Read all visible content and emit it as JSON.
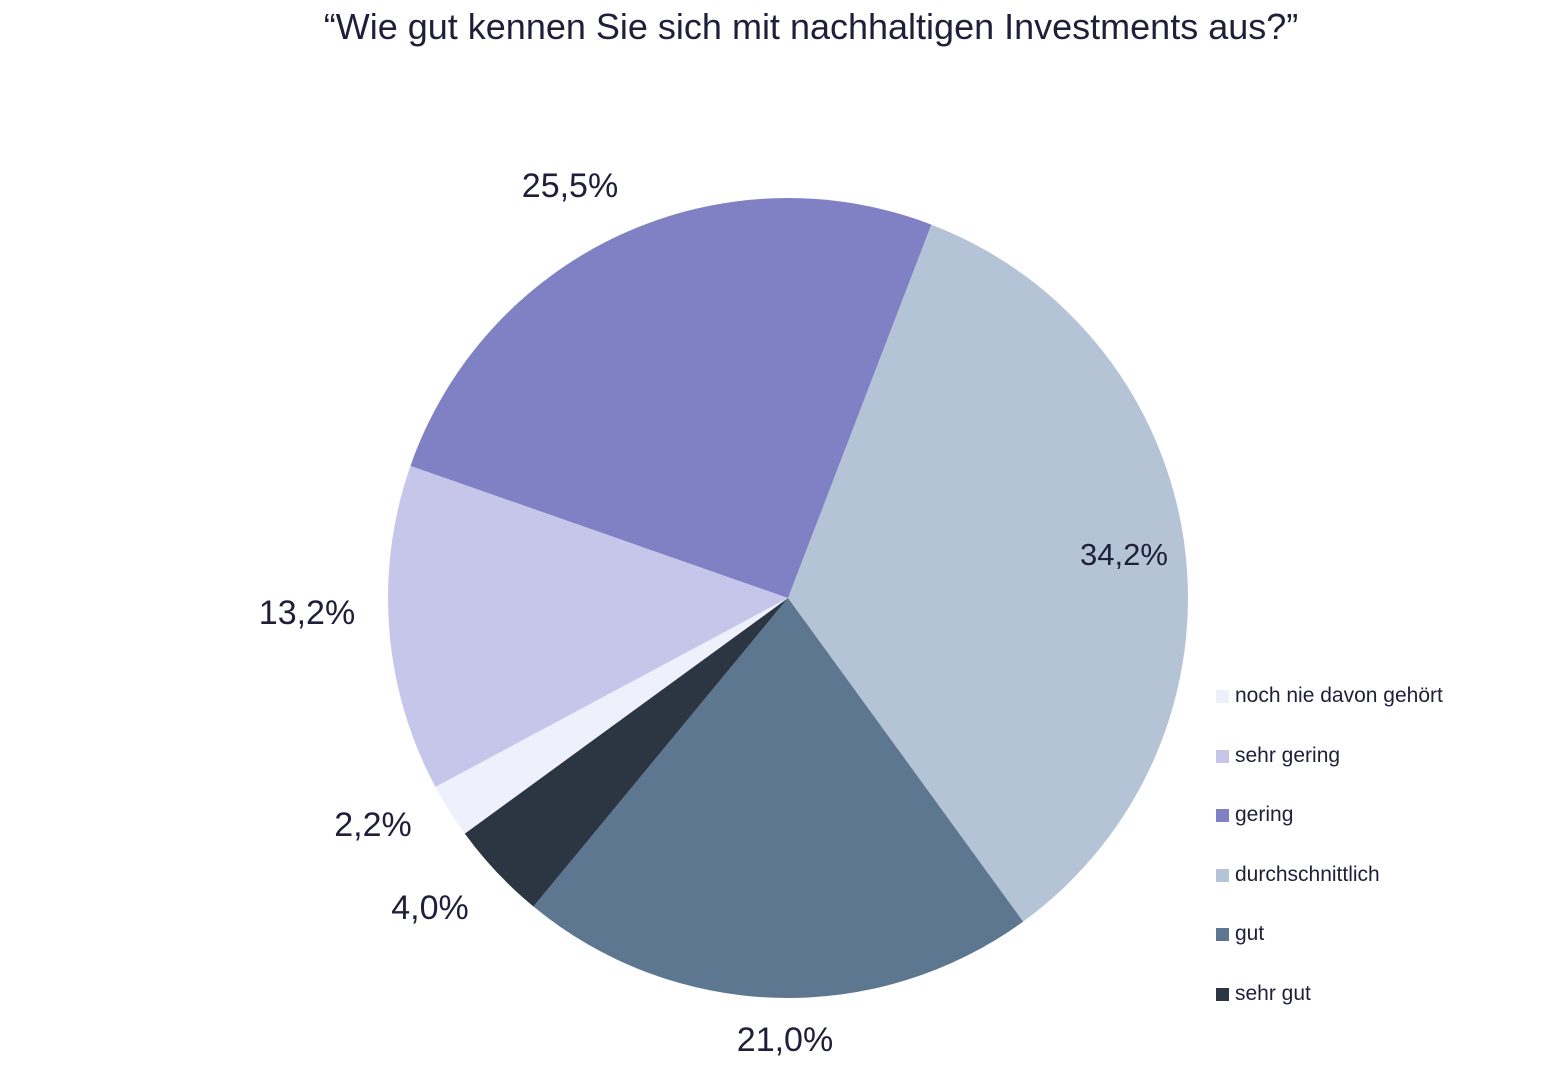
{
  "chart_data": {
    "type": "pie",
    "title": "“Wie gut kennen Sie sich mit nachhaltigen Investments aus?”",
    "categories": [
      "noch nie davon gehört",
      "sehr gering",
      "gering",
      "durchschnittlich",
      "gut",
      "sehr gut"
    ],
    "values": [
      2.2,
      13.2,
      25.5,
      34.2,
      21.0,
      4.0
    ],
    "labels": [
      "2,2%",
      "13,2%",
      "25,5%",
      "34,2%",
      "21,0%",
      "4,0%"
    ],
    "colors": [
      "#eef0fc",
      "#c6c6ea",
      "#7f81c4",
      "#b4c4d6",
      "#5d7791",
      "#2b3642"
    ],
    "legend_position": "right"
  }
}
